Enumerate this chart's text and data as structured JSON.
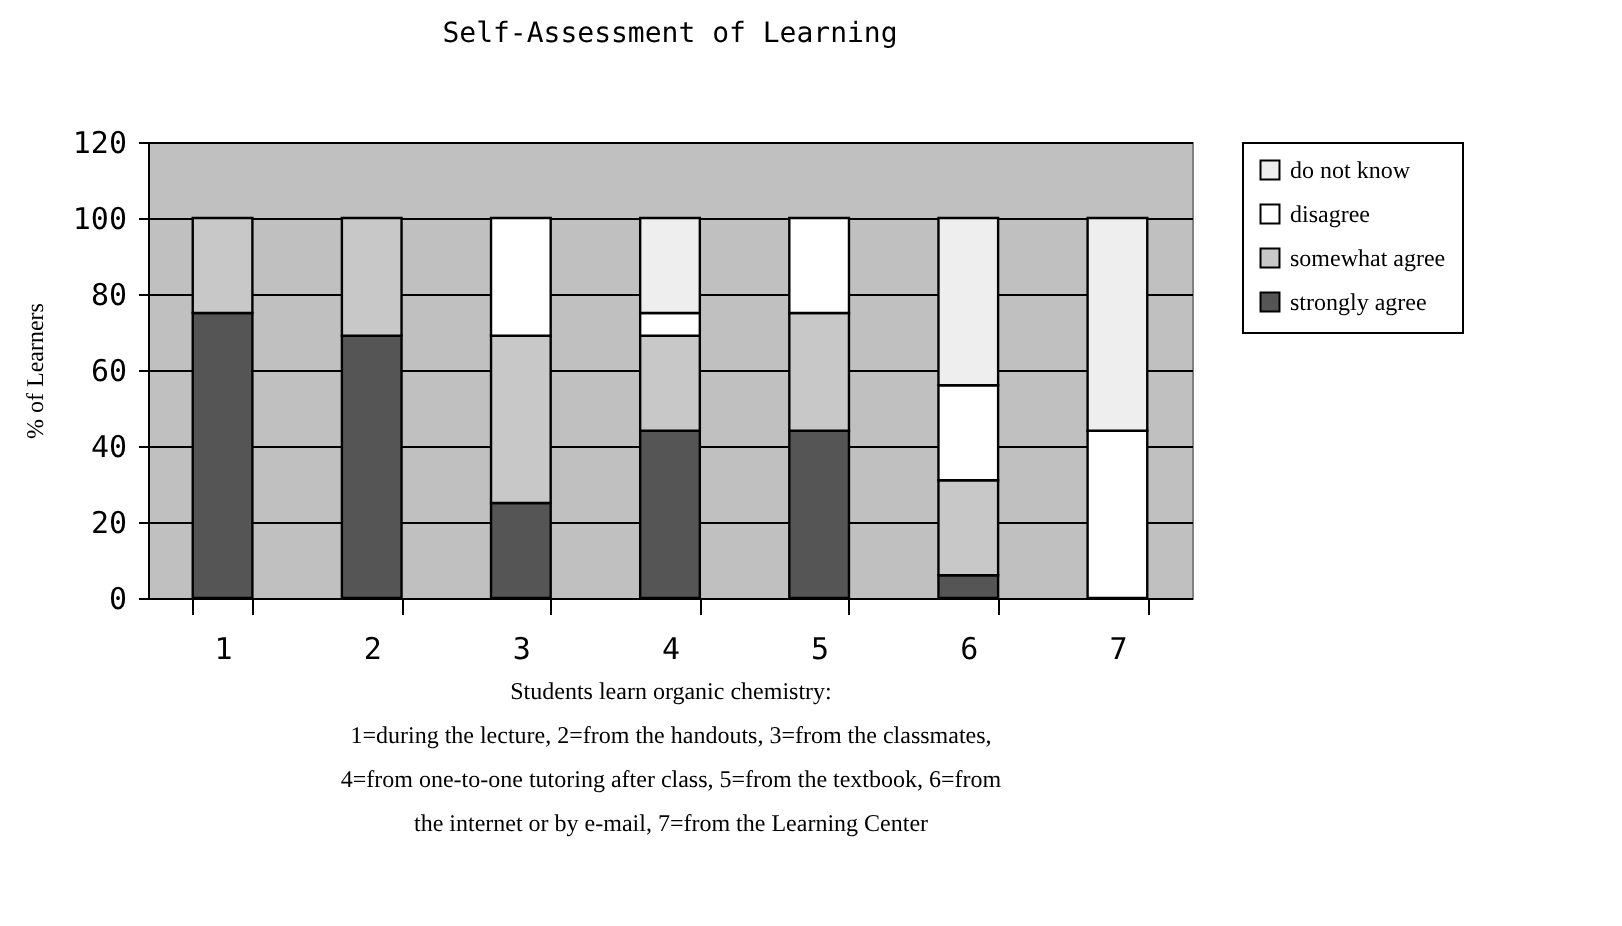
{
  "chart_data": {
    "type": "bar",
    "title": "Self-Assessment of Learning",
    "xlabel": "Students learn organic chemistry:\n1=during the lecture, 2=from the handouts, 3=from the classmates,\n4=from one-to-one tutoring after class, 5=from the textbook, 6=from\nthe internet or by e-mail, 7=from the Learning Center",
    "ylabel": "% of Learners",
    "categories": [
      "1",
      "2",
      "3",
      "4",
      "5",
      "6",
      "7"
    ],
    "series": [
      {
        "name": "strongly agree",
        "color": "#555555",
        "values": [
          75,
          69,
          25,
          44,
          44,
          6,
          null
        ]
      },
      {
        "name": "somewhat agree",
        "color": "#c8c8c8",
        "values": [
          25,
          31,
          44,
          25,
          31,
          25,
          null
        ]
      },
      {
        "name": "disagree",
        "color": "#ffffff",
        "values": [
          null,
          null,
          31,
          6,
          25,
          25,
          44
        ]
      },
      {
        "name": "do not know",
        "color": "#eeeeee",
        "values": [
          null,
          null,
          null,
          25,
          null,
          44,
          56
        ]
      }
    ],
    "stacked": true,
    "ylim": [
      0,
      120
    ],
    "yticks": [
      0,
      20,
      40,
      60,
      80,
      100,
      120
    ],
    "grid": "y",
    "legend": "right"
  }
}
